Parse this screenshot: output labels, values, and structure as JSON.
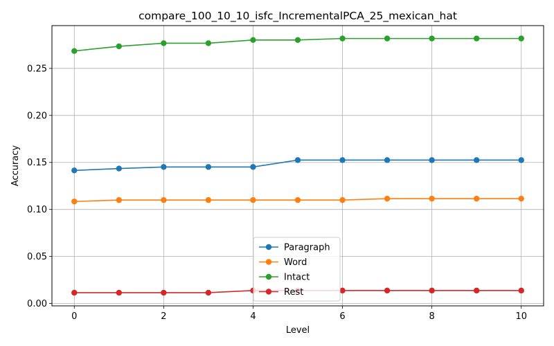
{
  "chart_data": {
    "type": "line",
    "title": "compare_100_10_10_isfc_IncrementalPCA_25_mexican_hat",
    "xlabel": "Level",
    "ylabel": "Accuracy",
    "xlim": [
      -0.5,
      10.5
    ],
    "ylim": [
      -0.0025,
      0.2955
    ],
    "xticks": [
      0,
      2,
      4,
      6,
      8,
      10
    ],
    "yticks": [
      0.0,
      0.05,
      0.1,
      0.15,
      0.2,
      0.25
    ],
    "ytick_labels": [
      "0.00",
      "0.05",
      "0.10",
      "0.15",
      "0.20",
      "0.25"
    ],
    "grid": true,
    "legend_position": "bottom-center",
    "x": [
      0,
      1,
      2,
      3,
      4,
      5,
      6,
      7,
      8,
      9,
      10
    ],
    "series": [
      {
        "name": "Paragraph",
        "color": "#1f77b4",
        "values": [
          0.1415,
          0.1435,
          0.1452,
          0.1452,
          0.1452,
          0.1525,
          0.1525,
          0.1525,
          0.1525,
          0.1525,
          0.1525
        ]
      },
      {
        "name": "Word",
        "color": "#ff7f0e",
        "values": [
          0.1085,
          0.11,
          0.11,
          0.11,
          0.11,
          0.11,
          0.11,
          0.1115,
          0.1115,
          0.1115,
          0.1115
        ]
      },
      {
        "name": "Intact",
        "color": "#2ca02c",
        "values": [
          0.2685,
          0.2735,
          0.2768,
          0.2768,
          0.2802,
          0.2802,
          0.2818,
          0.2818,
          0.2818,
          0.2818,
          0.2818
        ]
      },
      {
        "name": "Rest",
        "color": "#d62728",
        "values": [
          0.0115,
          0.0115,
          0.0115,
          0.0115,
          0.0138,
          0.0138,
          0.0138,
          0.0138,
          0.0138,
          0.0138,
          0.0138
        ]
      }
    ]
  }
}
